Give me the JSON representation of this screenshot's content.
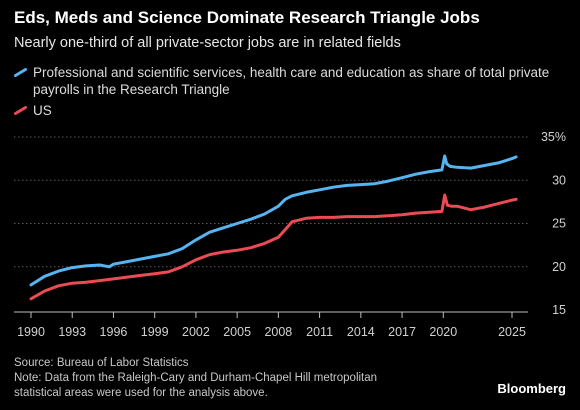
{
  "title": "Eds, Meds and Science Dominate Research Triangle Jobs",
  "subtitle": "Nearly one-third of all private-sector jobs are in related fields",
  "footer": {
    "source": "Source: Bureau of Labor Statistics",
    "note_line1": "Note: Data from the Raleigh-Cary and Durham-Chapel Hill metropolitan",
    "note_line2": "statistical areas were used for the analysis above."
  },
  "brand": "Bloomberg",
  "chart_data": {
    "type": "line",
    "title": "Eds, Meds and Science Dominate Research Triangle Jobs",
    "subtitle": "Nearly one-third of all private-sector jobs are in related fields",
    "xlabel": "",
    "ylabel": "",
    "xlim": [
      1990,
      2026
    ],
    "ylim": [
      15,
      35
    ],
    "x_ticks": [
      1990,
      1993,
      1996,
      1999,
      2002,
      2005,
      2008,
      2011,
      2014,
      2017,
      2020,
      2025
    ],
    "x_tick_labels": [
      "1990",
      "1993",
      "1996",
      "1999",
      "2002",
      "2005",
      "2008",
      "2011",
      "2014",
      "2017",
      "2020",
      "2025"
    ],
    "y_ticks": [
      15,
      20,
      25,
      30,
      35
    ],
    "y_tick_labels": [
      "15",
      "20",
      "25",
      "30",
      "35%"
    ],
    "grid": "horizontal dotted",
    "legend_position": "top-left",
    "series": [
      {
        "name": "Professional and scientific services, health care and education as share of total private payrolls in the Research Triangle",
        "color": "#56b4f0",
        "x": [
          1990,
          1991,
          1992,
          1993,
          1994,
          1995,
          1995.7,
          1996,
          1997,
          1998,
          1999,
          2000,
          2001,
          2002,
          2003,
          2004,
          2005,
          2006,
          2007,
          2008,
          2008.5,
          2009,
          2010,
          2011,
          2012,
          2013,
          2014,
          2015,
          2016,
          2017,
          2018,
          2019,
          2019.9,
          2020.1,
          2020.25,
          2020.5,
          2021,
          2022,
          2023,
          2024,
          2025,
          2025.3
        ],
        "y": [
          17.9,
          18.9,
          19.5,
          19.9,
          20.1,
          20.2,
          20.0,
          20.3,
          20.6,
          20.9,
          21.2,
          21.5,
          22.1,
          23.1,
          24.0,
          24.5,
          25.0,
          25.5,
          26.1,
          27.0,
          27.8,
          28.2,
          28.6,
          28.9,
          29.2,
          29.4,
          29.5,
          29.6,
          29.9,
          30.3,
          30.7,
          31.0,
          31.2,
          32.8,
          31.9,
          31.6,
          31.5,
          31.4,
          31.7,
          32.0,
          32.5,
          32.7
        ]
      },
      {
        "name": "US",
        "color": "#ea4b55",
        "x": [
          1990,
          1991,
          1992,
          1993,
          1994,
          1995,
          1996,
          1997,
          1998,
          1999,
          2000,
          2001,
          2002,
          2003,
          2004,
          2005,
          2006,
          2007,
          2008,
          2008.5,
          2009,
          2010,
          2011,
          2012,
          2013,
          2014,
          2015,
          2016,
          2017,
          2018,
          2019,
          2019.9,
          2020.1,
          2020.3,
          2020.6,
          2021,
          2022,
          2023,
          2024,
          2025,
          2025.3
        ],
        "y": [
          16.3,
          17.2,
          17.8,
          18.1,
          18.2,
          18.4,
          18.6,
          18.8,
          19.0,
          19.2,
          19.4,
          20.0,
          20.8,
          21.4,
          21.7,
          21.9,
          22.2,
          22.7,
          23.4,
          24.3,
          25.2,
          25.6,
          25.7,
          25.7,
          25.8,
          25.8,
          25.8,
          25.9,
          26.0,
          26.2,
          26.3,
          26.4,
          28.3,
          27.1,
          27.0,
          27.0,
          26.6,
          26.9,
          27.3,
          27.7,
          27.8
        ]
      }
    ]
  }
}
